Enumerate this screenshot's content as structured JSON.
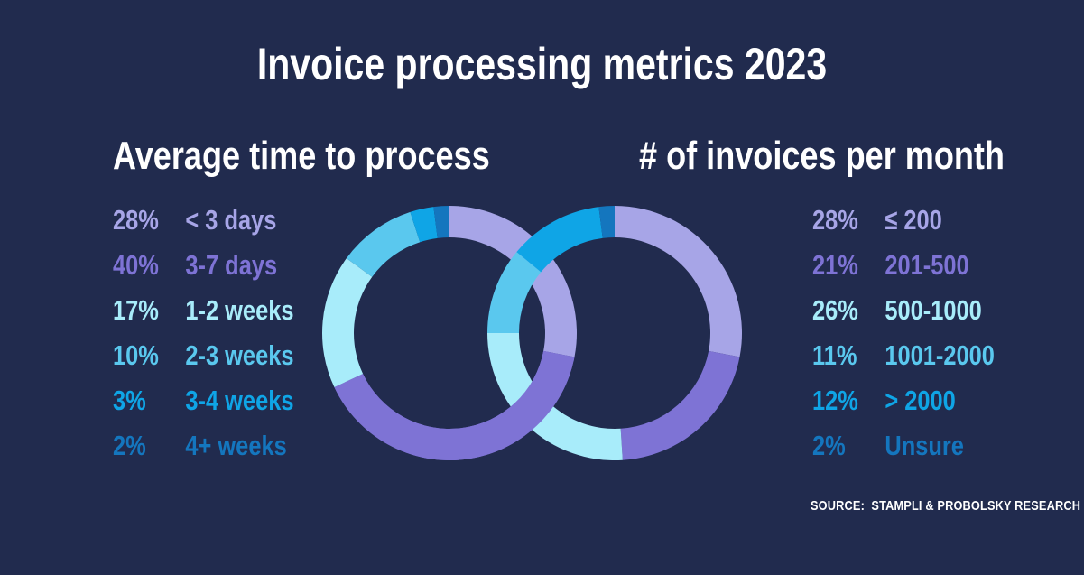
{
  "title": "Invoice processing metrics 2023",
  "source_label": "SOURCE:  STAMPLI & PROBOLSKY RESEARCH",
  "background_color": "#212b4e",
  "text_color": "#ffffff",
  "chart_data": [
    {
      "type": "pie",
      "variant": "donut",
      "title": "Average time to process",
      "legend_position": "left",
      "start_angle_deg": 0,
      "direction": "clockwise",
      "segments": [
        {
          "label": "< 3 days",
          "pct": 28,
          "color": "#a7a5e7",
          "color_name": "lavender"
        },
        {
          "label": "3-7 days",
          "pct": 40,
          "color": "#7e73d5",
          "color_name": "purple"
        },
        {
          "label": "1-2 weeks",
          "pct": 17,
          "color": "#a8ecfa",
          "color_name": "light-cyan"
        },
        {
          "label": "2-3 weeks",
          "pct": 10,
          "color": "#5ac8ee",
          "color_name": "sky-blue"
        },
        {
          "label": "3-4 weeks",
          "pct": 3,
          "color": "#0fa5e6",
          "color_name": "bright-blue"
        },
        {
          "label": "4+ weeks",
          "pct": 2,
          "color": "#1476be",
          "color_name": "dark-blue"
        }
      ]
    },
    {
      "type": "pie",
      "variant": "donut",
      "title": "# of invoices per month",
      "legend_position": "right",
      "start_angle_deg": 0,
      "direction": "clockwise",
      "segments": [
        {
          "label": "≤ 200",
          "pct": 28,
          "color": "#a7a5e7",
          "color_name": "lavender"
        },
        {
          "label": "201-500",
          "pct": 21,
          "color": "#7e73d5",
          "color_name": "purple"
        },
        {
          "label": "500-1000",
          "pct": 26,
          "color": "#a8ecfa",
          "color_name": "light-cyan"
        },
        {
          "label": "1001-2000",
          "pct": 11,
          "color": "#5ac8ee",
          "color_name": "sky-blue"
        },
        {
          "label": "> 2000",
          "pct": 12,
          "color": "#0fa5e6",
          "color_name": "bright-blue"
        },
        {
          "label": "Unsure",
          "pct": 2,
          "color": "#1476be",
          "color_name": "dark-blue"
        }
      ]
    }
  ]
}
